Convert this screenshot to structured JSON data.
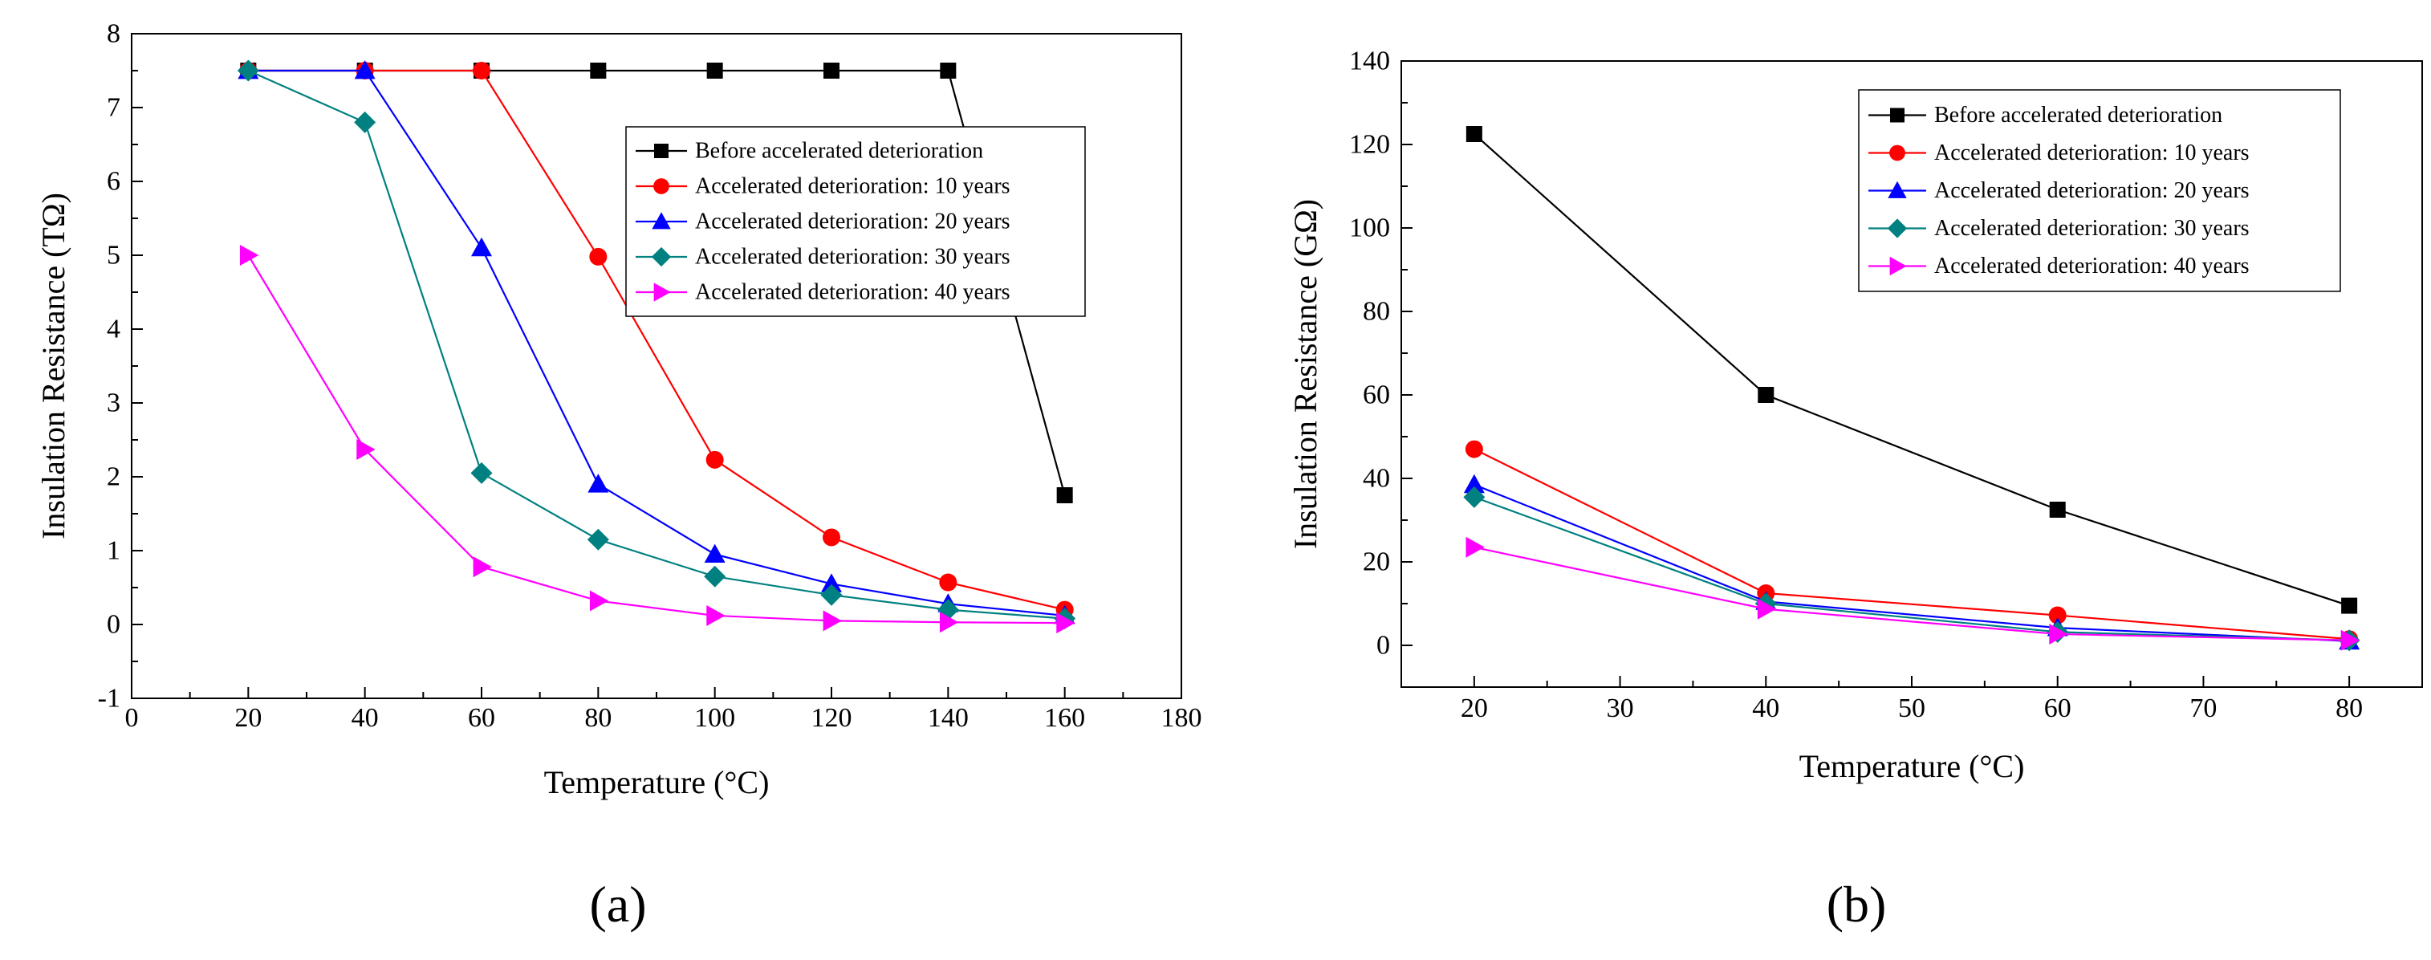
{
  "chart_data": [
    {
      "type": "line",
      "panel_label": "(a)",
      "xlabel": "Temperature (°C)",
      "ylabel": "Insulation Resistance (TΩ)",
      "xlim": [
        0,
        180
      ],
      "ylim": [
        -1,
        8
      ],
      "xticks": [
        0,
        20,
        40,
        60,
        80,
        100,
        120,
        140,
        160,
        180
      ],
      "yticks": [
        -1,
        0,
        1,
        2,
        3,
        4,
        5,
        6,
        7,
        8
      ],
      "xtick_labels": [
        "0",
        "20",
        "40",
        "60",
        "80",
        "100",
        "120",
        "140",
        "160",
        "180"
      ],
      "ytick_labels": [
        "-1",
        "0",
        "1",
        "2",
        "3",
        "4",
        "5",
        "6",
        "7",
        "8"
      ],
      "legend_position": "top-right",
      "series": [
        {
          "name": "Before accelerated deterioration",
          "color": "#000000",
          "marker": "square",
          "x": [
            20,
            40,
            60,
            80,
            100,
            120,
            140,
            160
          ],
          "y": [
            7.5,
            7.5,
            7.5,
            7.5,
            7.5,
            7.5,
            7.5,
            1.75
          ]
        },
        {
          "name": "Accelerated deterioration: 10 years",
          "color": "#ff0000",
          "marker": "circle",
          "x": [
            20,
            40,
            60,
            80,
            100,
            120,
            140,
            160
          ],
          "y": [
            7.5,
            7.5,
            7.5,
            4.98,
            2.23,
            1.18,
            0.57,
            0.2
          ]
        },
        {
          "name": "Accelerated deterioration: 20 years",
          "color": "#0000ff",
          "marker": "triangle-up",
          "x": [
            20,
            40,
            60,
            80,
            100,
            120,
            140,
            160
          ],
          "y": [
            7.5,
            7.5,
            5.1,
            1.9,
            0.95,
            0.55,
            0.28,
            0.12
          ]
        },
        {
          "name": "Accelerated deterioration: 30 years",
          "color": "#008080",
          "marker": "diamond",
          "x": [
            20,
            40,
            60,
            80,
            100,
            120,
            140,
            160
          ],
          "y": [
            7.5,
            6.8,
            2.05,
            1.15,
            0.65,
            0.4,
            0.2,
            0.08
          ]
        },
        {
          "name": "Accelerated deterioration: 40 years",
          "color": "#ff00ff",
          "marker": "triangle-right",
          "x": [
            20,
            40,
            60,
            80,
            100,
            120,
            140,
            160
          ],
          "y": [
            5.0,
            2.37,
            0.78,
            0.32,
            0.12,
            0.05,
            0.03,
            0.02
          ]
        }
      ]
    },
    {
      "type": "line",
      "panel_label": "(b)",
      "xlabel": "Temperature (°C)",
      "ylabel": "Insulation Resistance (GΩ)",
      "xlim": [
        15,
        85
      ],
      "ylim": [
        -10,
        140
      ],
      "xticks": [
        20,
        30,
        40,
        50,
        60,
        70,
        80
      ],
      "yticks": [
        0,
        20,
        40,
        60,
        80,
        100,
        120,
        140
      ],
      "xtick_labels": [
        "20",
        "30",
        "40",
        "50",
        "60",
        "70",
        "80"
      ],
      "ytick_labels": [
        "0",
        "20",
        "40",
        "60",
        "80",
        "100",
        "120",
        "140"
      ],
      "legend_position": "top-right",
      "series": [
        {
          "name": "Before accelerated deterioration",
          "color": "#000000",
          "marker": "square",
          "x": [
            20,
            40,
            60,
            80
          ],
          "y": [
            122.5,
            60,
            32.5,
            9.5
          ]
        },
        {
          "name": "Accelerated deterioration: 10 years",
          "color": "#ff0000",
          "marker": "circle",
          "x": [
            20,
            40,
            60,
            80
          ],
          "y": [
            47,
            12.5,
            7.2,
            1.5
          ]
        },
        {
          "name": "Accelerated deterioration: 20 years",
          "color": "#0000ff",
          "marker": "triangle-up",
          "x": [
            20,
            40,
            60,
            80
          ],
          "y": [
            38.5,
            10.5,
            4.2,
            1.0
          ]
        },
        {
          "name": "Accelerated deterioration: 30 years",
          "color": "#008080",
          "marker": "diamond",
          "x": [
            20,
            40,
            60,
            80
          ],
          "y": [
            35.5,
            10,
            3.2,
            1.2
          ]
        },
        {
          "name": "Accelerated deterioration: 40 years",
          "color": "#ff00ff",
          "marker": "triangle-right",
          "x": [
            20,
            40,
            60,
            80
          ],
          "y": [
            23.5,
            8.7,
            2.7,
            1.2
          ]
        }
      ]
    }
  ]
}
